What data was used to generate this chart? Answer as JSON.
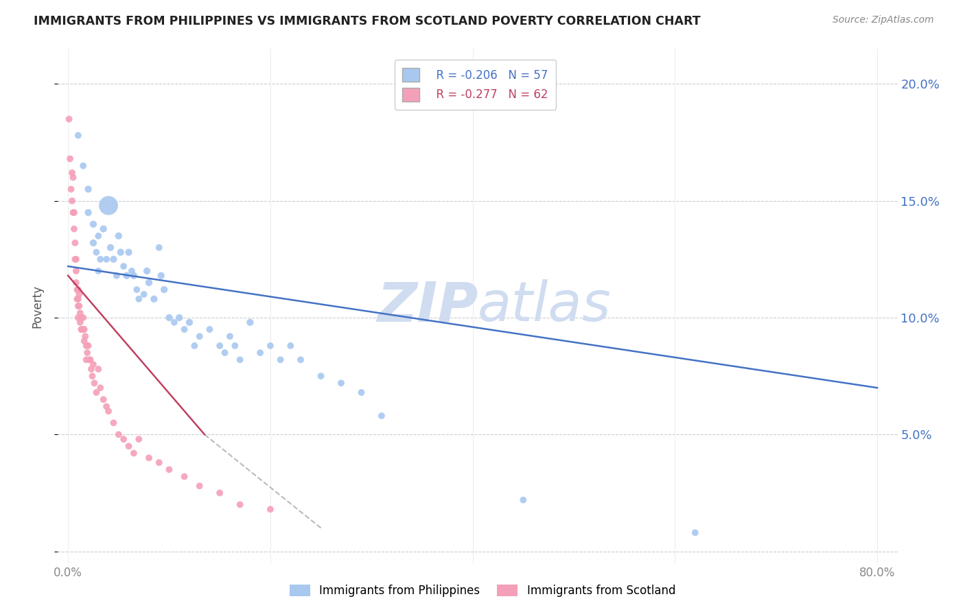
{
  "title": "IMMIGRANTS FROM PHILIPPINES VS IMMIGRANTS FROM SCOTLAND POVERTY CORRELATION CHART",
  "source": "Source: ZipAtlas.com",
  "ylabel": "Poverty",
  "y_ticks": [
    0.0,
    0.05,
    0.1,
    0.15,
    0.2
  ],
  "y_tick_labels": [
    "",
    "5.0%",
    "10.0%",
    "15.0%",
    "20.0%"
  ],
  "x_ticks": [
    0.0,
    0.2,
    0.4,
    0.6,
    0.8
  ],
  "x_tick_labels": [
    "0.0%",
    "",
    "",
    "",
    "80.0%"
  ],
  "xlim": [
    -0.01,
    0.82
  ],
  "ylim": [
    -0.005,
    0.215
  ],
  "legend_r1": "R = -0.206",
  "legend_n1": "N = 57",
  "legend_r2": "R = -0.277",
  "legend_n2": "N = 62",
  "color_philippines": "#A8C8F0",
  "color_scotland": "#F4A0B8",
  "color_trend_philippines": "#4472C4",
  "color_trend_scotland": "#C04060",
  "color_trend_scotland_dashed": "#BBBBBB",
  "watermark_zip": "ZIP",
  "watermark_atlas": "atlas",
  "watermark_color": "#D0DCF0",
  "philippines_x": [
    0.01,
    0.015,
    0.02,
    0.02,
    0.025,
    0.025,
    0.028,
    0.03,
    0.03,
    0.032,
    0.035,
    0.038,
    0.04,
    0.042,
    0.045,
    0.048,
    0.05,
    0.052,
    0.055,
    0.058,
    0.06,
    0.063,
    0.065,
    0.068,
    0.07,
    0.075,
    0.078,
    0.08,
    0.085,
    0.09,
    0.092,
    0.095,
    0.1,
    0.105,
    0.11,
    0.115,
    0.12,
    0.125,
    0.13,
    0.14,
    0.15,
    0.155,
    0.16,
    0.165,
    0.17,
    0.18,
    0.19,
    0.2,
    0.21,
    0.22,
    0.23,
    0.25,
    0.27,
    0.29,
    0.31,
    0.45,
    0.62
  ],
  "philippines_y": [
    0.178,
    0.165,
    0.155,
    0.145,
    0.14,
    0.132,
    0.128,
    0.135,
    0.12,
    0.125,
    0.138,
    0.125,
    0.148,
    0.13,
    0.125,
    0.118,
    0.135,
    0.128,
    0.122,
    0.118,
    0.128,
    0.12,
    0.118,
    0.112,
    0.108,
    0.11,
    0.12,
    0.115,
    0.108,
    0.13,
    0.118,
    0.112,
    0.1,
    0.098,
    0.1,
    0.095,
    0.098,
    0.088,
    0.092,
    0.095,
    0.088,
    0.085,
    0.092,
    0.088,
    0.082,
    0.098,
    0.085,
    0.088,
    0.082,
    0.088,
    0.082,
    0.075,
    0.072,
    0.068,
    0.058,
    0.022,
    0.008
  ],
  "philippines_size": [
    50,
    50,
    55,
    55,
    55,
    55,
    50,
    50,
    50,
    50,
    55,
    50,
    400,
    55,
    55,
    50,
    55,
    55,
    50,
    55,
    55,
    50,
    55,
    50,
    50,
    50,
    55,
    55,
    55,
    50,
    55,
    55,
    55,
    50,
    55,
    50,
    55,
    50,
    50,
    50,
    50,
    50,
    50,
    50,
    50,
    55,
    50,
    50,
    50,
    50,
    50,
    50,
    50,
    50,
    50,
    50,
    50
  ],
  "scotland_x": [
    0.001,
    0.002,
    0.003,
    0.004,
    0.004,
    0.005,
    0.005,
    0.006,
    0.006,
    0.007,
    0.007,
    0.008,
    0.008,
    0.008,
    0.009,
    0.009,
    0.01,
    0.01,
    0.01,
    0.01,
    0.011,
    0.011,
    0.012,
    0.012,
    0.013,
    0.013,
    0.014,
    0.015,
    0.015,
    0.016,
    0.016,
    0.017,
    0.018,
    0.018,
    0.019,
    0.02,
    0.021,
    0.022,
    0.023,
    0.024,
    0.025,
    0.026,
    0.028,
    0.03,
    0.032,
    0.035,
    0.038,
    0.04,
    0.045,
    0.05,
    0.055,
    0.06,
    0.065,
    0.07,
    0.08,
    0.09,
    0.1,
    0.115,
    0.13,
    0.15,
    0.17,
    0.2
  ],
  "scotland_y": [
    0.185,
    0.168,
    0.155,
    0.15,
    0.162,
    0.16,
    0.145,
    0.145,
    0.138,
    0.132,
    0.125,
    0.125,
    0.12,
    0.115,
    0.112,
    0.108,
    0.112,
    0.108,
    0.105,
    0.1,
    0.11,
    0.105,
    0.102,
    0.098,
    0.1,
    0.095,
    0.095,
    0.1,
    0.095,
    0.095,
    0.09,
    0.092,
    0.088,
    0.082,
    0.085,
    0.088,
    0.082,
    0.082,
    0.078,
    0.075,
    0.08,
    0.072,
    0.068,
    0.078,
    0.07,
    0.065,
    0.062,
    0.06,
    0.055,
    0.05,
    0.048,
    0.045,
    0.042,
    0.048,
    0.04,
    0.038,
    0.035,
    0.032,
    0.028,
    0.025,
    0.02,
    0.018
  ],
  "scotland_size": [
    50,
    50,
    50,
    50,
    50,
    50,
    50,
    50,
    50,
    50,
    50,
    50,
    50,
    50,
    50,
    50,
    50,
    50,
    50,
    50,
    50,
    50,
    50,
    50,
    50,
    50,
    50,
    50,
    50,
    50,
    50,
    50,
    50,
    50,
    50,
    50,
    50,
    50,
    50,
    50,
    50,
    50,
    50,
    50,
    50,
    50,
    50,
    50,
    50,
    50,
    50,
    50,
    50,
    50,
    50,
    50,
    50,
    50,
    50,
    50,
    50,
    50
  ],
  "trend_phil_x0": 0.0,
  "trend_phil_x1": 0.8,
  "trend_phil_y0": 0.122,
  "trend_phil_y1": 0.07,
  "trend_scot_solid_x0": 0.0,
  "trend_scot_solid_x1": 0.135,
  "trend_scot_solid_y0": 0.118,
  "trend_scot_solid_y1": 0.05,
  "trend_scot_dash_x0": 0.135,
  "trend_scot_dash_x1": 0.25,
  "trend_scot_dash_y0": 0.05,
  "trend_scot_dash_y1": 0.01
}
